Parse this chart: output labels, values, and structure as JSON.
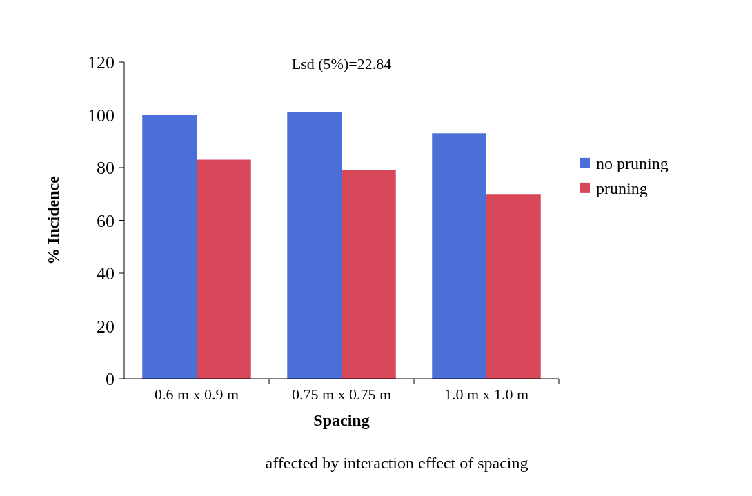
{
  "chart_data": {
    "type": "bar",
    "xlabel": "Spacing",
    "ylabel": "% Incidence",
    "categories": [
      "0.6 m x 0.9 m",
      "0.75 m x 0.75 m",
      "1.0 m x 1.0 m"
    ],
    "series": [
      {
        "name": "no pruning",
        "color": "#4a6fd8",
        "values": [
          100,
          101,
          93
        ]
      },
      {
        "name": "pruning",
        "color": "#d9485a",
        "values": [
          83,
          79,
          70
        ]
      }
    ],
    "ylim": [
      0,
      120
    ],
    "yticks": [
      0,
      20,
      40,
      60,
      80,
      100,
      120
    ],
    "legend": "right",
    "annotations": [
      "Lsd (5%)=22.84",
      "affected by interaction effect of spacing"
    ]
  }
}
